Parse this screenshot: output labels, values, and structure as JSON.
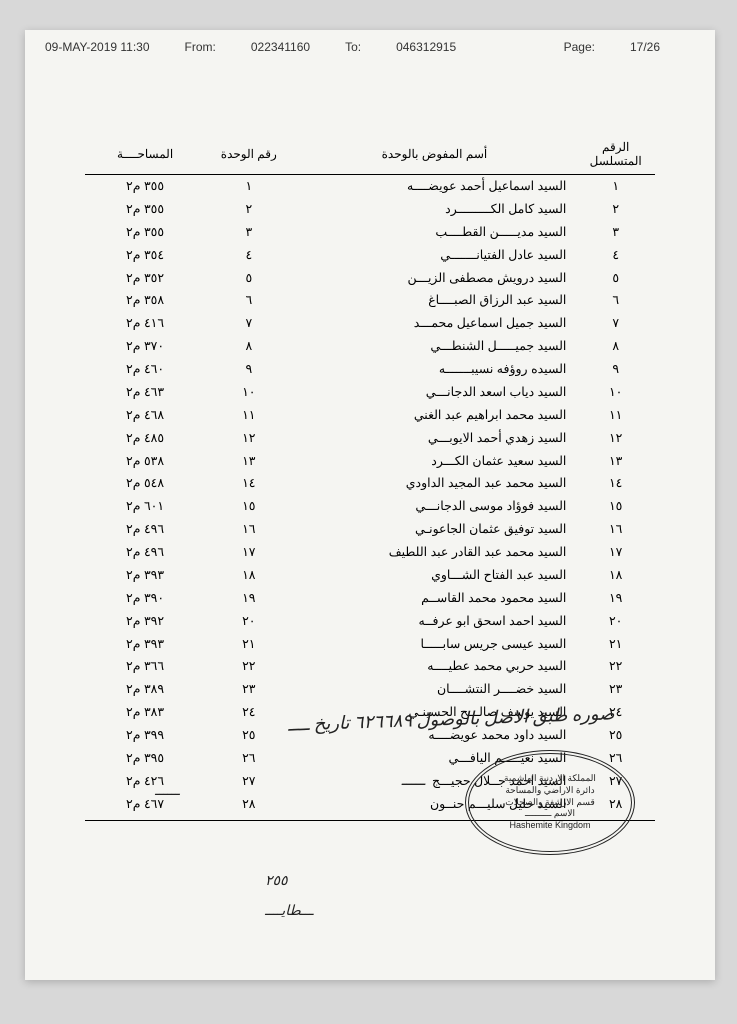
{
  "fax_header": {
    "date": "09-MAY-2019  11:30",
    "from_label": "From:",
    "from_num": "022341160",
    "to_label": "To:",
    "to_num": "046312915",
    "page_label": "Page:",
    "page_num": "17/26"
  },
  "table": {
    "headers": {
      "seq": "الرقم المتسلسل",
      "name": "أسم المفوض بالوحدة",
      "unit": "رقم الوحدة",
      "area": "المساحــــة"
    },
    "rows": [
      {
        "seq": "١",
        "name": "السيد اسماعيل أحمد عويضــــه",
        "unit": "١",
        "area": "٣٥٥ م٢"
      },
      {
        "seq": "٢",
        "name": "السيد كامل الكـــــــــرد",
        "unit": "٢",
        "area": "٣٥٥ م٢"
      },
      {
        "seq": "٣",
        "name": "السيد مديـــــن القطــــب",
        "unit": "٣",
        "area": "٣٥٥ م٢"
      },
      {
        "seq": "٤",
        "name": "السيد عادل الفتيانـــــــي",
        "unit": "٤",
        "area": "٣٥٤ م٢"
      },
      {
        "seq": "٥",
        "name": "السيد درويش مصطفى الزيـــن",
        "unit": "٥",
        "area": "٣٥٢ م٢"
      },
      {
        "seq": "٦",
        "name": "السيد عبد الرزاق الصبــــاغ",
        "unit": "٦",
        "area": "٣٥٨ م٢"
      },
      {
        "seq": "٧",
        "name": "السيد جميل اسماعيل محمـــد",
        "unit": "٧",
        "area": "٤١٦ م٢"
      },
      {
        "seq": "٨",
        "name": "السيد جميـــــل الشنطـــي",
        "unit": "٨",
        "area": "٣٧٠ م٢"
      },
      {
        "seq": "٩",
        "name": "السيده روؤفه نسيبـــــــه",
        "unit": "٩",
        "area": "٤٦٠ م٢"
      },
      {
        "seq": "١٠",
        "name": "السيد دياب اسعد الدجانـــي",
        "unit": "١٠",
        "area": "٤٦٣ م٢"
      },
      {
        "seq": "١١",
        "name": "السيد محمد ابراهيم عبد الغني",
        "unit": "١١",
        "area": "٤٦٨ م٢"
      },
      {
        "seq": "١٢",
        "name": "السيد زهدي أحمد الايوبـــي",
        "unit": "١٢",
        "area": "٤٨٥ م٢"
      },
      {
        "seq": "١٣",
        "name": "السيد سعيد عثمان الكـــرد",
        "unit": "١٣",
        "area": "٥٣٨ م٢"
      },
      {
        "seq": "١٤",
        "name": "السيد محمد عبد المجيد الداودي",
        "unit": "١٤",
        "area": "٥٤٨ م٢"
      },
      {
        "seq": "١٥",
        "name": "السيد فوؤاد موسى الدجانـــي",
        "unit": "١٥",
        "area": "٦٠١ م٢"
      },
      {
        "seq": "١٦",
        "name": "السيد توفيق عثمان الجاعونـي",
        "unit": "١٦",
        "area": "٤٩٦ م٢"
      },
      {
        "seq": "١٧",
        "name": "السيد محمد عبد القادر عبد اللطيف",
        "unit": "١٧",
        "area": "٤٩٦ م٢"
      },
      {
        "seq": "١٨",
        "name": "السيد عبد الفتاح الشـــاوي",
        "unit": "١٨",
        "area": "٣٩٣ م٢"
      },
      {
        "seq": "١٩",
        "name": "السيد محمود محمد القاســم",
        "unit": "١٩",
        "area": "٣٩٠ م٢"
      },
      {
        "seq": "٢٠",
        "name": "السيد احمد اسحق ابو عرفــه",
        "unit": "٢٠",
        "area": "٣٩٢ م٢"
      },
      {
        "seq": "٢١",
        "name": "السيد عيسى جريس سابـــــا",
        "unit": "٢١",
        "area": "٣٩٣ م٢"
      },
      {
        "seq": "٢٢",
        "name": "السيد حربي محمد عطيــــه",
        "unit": "٢٢",
        "area": "٣٦٦ م٢"
      },
      {
        "seq": "٢٣",
        "name": "السيد خضــــر النتشــــان",
        "unit": "٢٣",
        "area": "٣٨٩ م٢"
      },
      {
        "seq": "٢٤",
        "name": "السيد يوسف صالـــح الحسينـي",
        "unit": "٢٤",
        "area": "٣٨٣ م٢"
      },
      {
        "seq": "٢٥",
        "name": "السيد داود محمد عويضــــه",
        "unit": "٢٥",
        "area": "٣٩٩ م٢"
      },
      {
        "seq": "٢٦",
        "name": "السيد نعيـــــم اليافـــي",
        "unit": "٢٦",
        "area": "٣٩٥ م٢"
      },
      {
        "seq": "٢٧",
        "name": "السيد احمد جــلال حجيـــج",
        "unit": "٢٧",
        "area": "٤٢٦ م٢"
      },
      {
        "seq": "٢٨",
        "name": "السيد خليل سليـــم حنــون",
        "unit": "٢٨",
        "area": "٤٦٧ م٢"
      }
    ]
  },
  "stamp": {
    "line1": "المملكة الاردنية الهاشمية",
    "line2": "دائرة الاراضي والمساحة",
    "line3": "قسم الارشفة والسجلات",
    "line4": "الاسم ــــــــــ",
    "line5": "Hashemite Kingdom"
  },
  "handwriting": {
    "hw1": "صوره طبق الاصل بالوصول ٦٢٦٦٨٩ تاريخ ــــ",
    "hw2": "ــــــ",
    "hw3": "٢٥٥",
    "hw4": "ـــطايــــ",
    "hw5": "ـــــ"
  }
}
